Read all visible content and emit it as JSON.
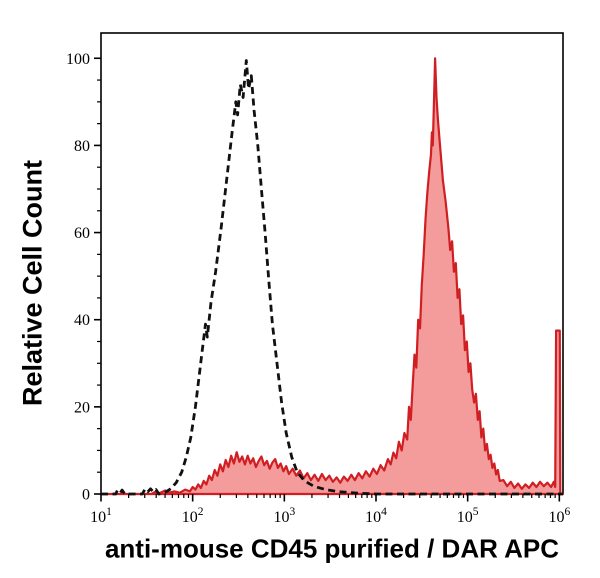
{
  "figure": {
    "xlabel": "anti-mouse CD45 purified / DAR APC",
    "ylabel": "Relative Cell Count",
    "background": "#ffffff"
  },
  "chart_data": {
    "type": "area",
    "subtype": "flow-cytometry-histogram-overlay",
    "title": "",
    "xlabel": "anti-mouse CD45 purified / DAR APC",
    "ylabel": "Relative Cell Count",
    "x_scale": "log10",
    "xlim_exponent": [
      1,
      6.04
    ],
    "ylim": [
      0,
      105.8
    ],
    "grid": false,
    "legend": null,
    "x_ticks": [
      {
        "exp": 1,
        "base": "10",
        "sup": "1"
      },
      {
        "exp": 2,
        "base": "10",
        "sup": "2"
      },
      {
        "exp": 3,
        "base": "10",
        "sup": "3"
      },
      {
        "exp": 4,
        "base": "10",
        "sup": "4"
      },
      {
        "exp": 5,
        "base": "10",
        "sup": "5"
      },
      {
        "exp": 6,
        "base": "10",
        "sup": "6"
      }
    ],
    "x_minor_multiples": [
      2,
      3,
      4,
      5,
      6,
      7,
      8,
      9
    ],
    "y_ticks": [
      {
        "value": 0,
        "label": "0"
      },
      {
        "value": 20,
        "label": "20"
      },
      {
        "value": 40,
        "label": "40"
      },
      {
        "value": 60,
        "label": "60"
      },
      {
        "value": 80,
        "label": "80"
      },
      {
        "value": 100,
        "label": "100"
      }
    ],
    "y_minor_step": 5,
    "axis_color": "#000000",
    "series": [
      {
        "name": "red-filled-stained-sample",
        "style": "filled",
        "stroke": "#d01f23",
        "fill": "#f49b9b",
        "stroke_width": 2.2,
        "points": [
          [
            1.0,
            0
          ],
          [
            1.55,
            0
          ],
          [
            1.6,
            0.6
          ],
          [
            1.64,
            0.2
          ],
          [
            1.7,
            0.8
          ],
          [
            1.74,
            0.3
          ],
          [
            1.8,
            0.6
          ],
          [
            1.86,
            0.3
          ],
          [
            1.92,
            1.0
          ],
          [
            1.97,
            0.6
          ],
          [
            2.0,
            1.6
          ],
          [
            2.03,
            1.0
          ],
          [
            2.06,
            2.2
          ],
          [
            2.09,
            1.4
          ],
          [
            2.12,
            3.0
          ],
          [
            2.15,
            2.2
          ],
          [
            2.18,
            4.2
          ],
          [
            2.21,
            3.2
          ],
          [
            2.24,
            5.5
          ],
          [
            2.27,
            4.2
          ],
          [
            2.3,
            6.8
          ],
          [
            2.33,
            5.2
          ],
          [
            2.36,
            7.8
          ],
          [
            2.39,
            6.2
          ],
          [
            2.42,
            8.8
          ],
          [
            2.45,
            7.0
          ],
          [
            2.48,
            9.6
          ],
          [
            2.51,
            7.4
          ],
          [
            2.54,
            8.6
          ],
          [
            2.57,
            6.8
          ],
          [
            2.6,
            8.8
          ],
          [
            2.63,
            7.0
          ],
          [
            2.66,
            8.2
          ],
          [
            2.69,
            6.2
          ],
          [
            2.72,
            7.6
          ],
          [
            2.75,
            8.6
          ],
          [
            2.78,
            6.6
          ],
          [
            2.81,
            7.6
          ],
          [
            2.84,
            5.8
          ],
          [
            2.87,
            7.2
          ],
          [
            2.9,
            8.0
          ],
          [
            2.93,
            6.0
          ],
          [
            2.96,
            7.0
          ],
          [
            2.99,
            5.2
          ],
          [
            3.02,
            6.4
          ],
          [
            3.05,
            4.6
          ],
          [
            3.09,
            5.8
          ],
          [
            3.13,
            4.2
          ],
          [
            3.17,
            5.4
          ],
          [
            3.21,
            3.6
          ],
          [
            3.25,
            4.8
          ],
          [
            3.29,
            3.2
          ],
          [
            3.33,
            4.4
          ],
          [
            3.37,
            3.0
          ],
          [
            3.41,
            4.6
          ],
          [
            3.45,
            3.2
          ],
          [
            3.49,
            4.2
          ],
          [
            3.53,
            2.8
          ],
          [
            3.57,
            3.8
          ],
          [
            3.61,
            2.6
          ],
          [
            3.65,
            4.0
          ],
          [
            3.69,
            3.0
          ],
          [
            3.73,
            4.4
          ],
          [
            3.77,
            3.2
          ],
          [
            3.81,
            4.8
          ],
          [
            3.85,
            3.6
          ],
          [
            3.89,
            5.2
          ],
          [
            3.93,
            4.0
          ],
          [
            3.97,
            5.8
          ],
          [
            4.01,
            4.6
          ],
          [
            4.05,
            6.6
          ],
          [
            4.09,
            5.4
          ],
          [
            4.13,
            8.0
          ],
          [
            4.16,
            6.8
          ],
          [
            4.19,
            9.5
          ],
          [
            4.22,
            8.2
          ],
          [
            4.25,
            12
          ],
          [
            4.28,
            10
          ],
          [
            4.31,
            14
          ],
          [
            4.34,
            12.5
          ],
          [
            4.36,
            20
          ],
          [
            4.38,
            17
          ],
          [
            4.4,
            25
          ],
          [
            4.42,
            32
          ],
          [
            4.44,
            29
          ],
          [
            4.46,
            40
          ],
          [
            4.48,
            38
          ],
          [
            4.5,
            48
          ],
          [
            4.52,
            55
          ],
          [
            4.54,
            63
          ],
          [
            4.56,
            69
          ],
          [
            4.58,
            74
          ],
          [
            4.6,
            78
          ],
          [
            4.61,
            83
          ],
          [
            4.62,
            80
          ],
          [
            4.635,
            92
          ],
          [
            4.645,
            100
          ],
          [
            4.66,
            91
          ],
          [
            4.675,
            86
          ],
          [
            4.69,
            82
          ],
          [
            4.71,
            77
          ],
          [
            4.73,
            72
          ],
          [
            4.76,
            67
          ],
          [
            4.79,
            61
          ],
          [
            4.81,
            56
          ],
          [
            4.83,
            58
          ],
          [
            4.85,
            51
          ],
          [
            4.87,
            53
          ],
          [
            4.89,
            45
          ],
          [
            4.91,
            47
          ],
          [
            4.93,
            39
          ],
          [
            4.95,
            41
          ],
          [
            4.97,
            33
          ],
          [
            4.99,
            35
          ],
          [
            5.01,
            28
          ],
          [
            5.03,
            30
          ],
          [
            5.05,
            24
          ],
          [
            5.07,
            21
          ],
          [
            5.09,
            23
          ],
          [
            5.11,
            17
          ],
          [
            5.13,
            19
          ],
          [
            5.15,
            13
          ],
          [
            5.17,
            15
          ],
          [
            5.19,
            10
          ],
          [
            5.21,
            11.5
          ],
          [
            5.23,
            8
          ],
          [
            5.25,
            9
          ],
          [
            5.27,
            6
          ],
          [
            5.29,
            7
          ],
          [
            5.31,
            4.5
          ],
          [
            5.33,
            5.5
          ],
          [
            5.35,
            3
          ],
          [
            5.39,
            3.2
          ],
          [
            5.43,
            1.8
          ],
          [
            5.47,
            2.8
          ],
          [
            5.51,
            1.4
          ],
          [
            5.55,
            2.4
          ],
          [
            5.59,
            1.2
          ],
          [
            5.63,
            2.2
          ],
          [
            5.67,
            1.4
          ],
          [
            5.71,
            2.6
          ],
          [
            5.75,
            1.6
          ],
          [
            5.79,
            2.8
          ],
          [
            5.83,
            1.8
          ],
          [
            5.87,
            2.6
          ],
          [
            5.91,
            1.6
          ],
          [
            5.94,
            2.8
          ],
          [
            5.955,
            1.6
          ],
          [
            5.965,
            37.5
          ],
          [
            6.005,
            37.5
          ],
          [
            6.01,
            0
          ],
          [
            6.04,
            0
          ]
        ]
      },
      {
        "name": "black-dashed-control",
        "style": "dashed",
        "stroke": "#111111",
        "fill": "none",
        "stroke_width": 2.8,
        "dash": [
          7,
          4.5
        ],
        "points": [
          [
            1.0,
            0
          ],
          [
            1.16,
            0
          ],
          [
            1.18,
            0.9
          ],
          [
            1.21,
            0.3
          ],
          [
            1.23,
            0.9
          ],
          [
            1.26,
            0
          ],
          [
            1.45,
            0
          ],
          [
            1.48,
            1.1
          ],
          [
            1.51,
            0.5
          ],
          [
            1.54,
            1.2
          ],
          [
            1.57,
            0.5
          ],
          [
            1.6,
            1.0
          ],
          [
            1.63,
            0
          ],
          [
            1.7,
            0.4
          ],
          [
            1.76,
            1.2
          ],
          [
            1.82,
            2.6
          ],
          [
            1.88,
            5
          ],
          [
            1.93,
            8.5
          ],
          [
            1.98,
            13
          ],
          [
            2.03,
            20
          ],
          [
            2.07,
            27
          ],
          [
            2.11,
            34
          ],
          [
            2.14,
            39
          ],
          [
            2.16,
            36
          ],
          [
            2.2,
            44
          ],
          [
            2.25,
            51
          ],
          [
            2.31,
            61
          ],
          [
            2.37,
            72
          ],
          [
            2.43,
            83
          ],
          [
            2.47,
            90
          ],
          [
            2.49,
            87
          ],
          [
            2.52,
            94
          ],
          [
            2.55,
            91
          ],
          [
            2.585,
            99.5
          ],
          [
            2.61,
            93
          ],
          [
            2.64,
            96
          ],
          [
            2.67,
            88
          ],
          [
            2.71,
            80
          ],
          [
            2.75,
            70
          ],
          [
            2.79,
            60
          ],
          [
            2.83,
            49
          ],
          [
            2.87,
            39
          ],
          [
            2.92,
            30
          ],
          [
            2.97,
            21
          ],
          [
            3.02,
            14
          ],
          [
            3.08,
            8.5
          ],
          [
            3.14,
            5
          ],
          [
            3.22,
            3
          ],
          [
            3.32,
            1.8
          ],
          [
            3.45,
            1
          ],
          [
            3.6,
            0.5
          ],
          [
            3.8,
            0.2
          ],
          [
            4.0,
            0
          ],
          [
            6.04,
            0
          ]
        ]
      }
    ]
  }
}
